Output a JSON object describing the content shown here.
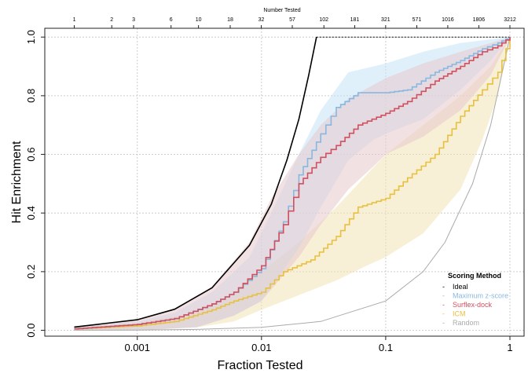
{
  "chart_data": {
    "type": "line",
    "xlabel": "Fraction Tested",
    "ylabel": "Hit Enrichment",
    "top_axis_title": "Number Tested",
    "xscale": "log",
    "xlim": [
      0.00018,
      1.3
    ],
    "ylim": [
      -0.02,
      1.03
    ],
    "x_ticks": [
      {
        "value": 0.001,
        "label": "0.001"
      },
      {
        "value": 0.01,
        "label": "0.01"
      },
      {
        "value": 0.1,
        "label": "0.1"
      },
      {
        "value": 1,
        "label": "1"
      }
    ],
    "y_ticks": [
      {
        "value": 0.0,
        "label": "0.0"
      },
      {
        "value": 0.2,
        "label": "0.2"
      },
      {
        "value": 0.4,
        "label": "0.4"
      },
      {
        "value": 0.6,
        "label": "0.6"
      },
      {
        "value": 0.8,
        "label": "0.8"
      },
      {
        "value": 1.0,
        "label": "1.0"
      }
    ],
    "top_ticks": [
      {
        "value": 0.000311,
        "label": "1"
      },
      {
        "value": 0.000623,
        "label": "2"
      },
      {
        "value": 0.000934,
        "label": "3"
      },
      {
        "value": 0.00187,
        "label": "6"
      },
      {
        "value": 0.00311,
        "label": "10"
      },
      {
        "value": 0.0056,
        "label": "18"
      },
      {
        "value": 0.00996,
        "label": "32"
      },
      {
        "value": 0.0177,
        "label": "57"
      },
      {
        "value": 0.0318,
        "label": "102"
      },
      {
        "value": 0.0563,
        "label": "181"
      },
      {
        "value": 0.0999,
        "label": "321"
      },
      {
        "value": 0.178,
        "label": "571"
      },
      {
        "value": 0.316,
        "label": "1016"
      },
      {
        "value": 0.562,
        "label": "1806"
      },
      {
        "value": 1.0,
        "label": "3212"
      }
    ],
    "legend": {
      "title": "Scoring Method",
      "position": "bottom-right",
      "entries": [
        "Ideal",
        "Maximum z-score",
        "Surflex-dock",
        "ICM",
        "Random"
      ]
    },
    "series": [
      {
        "name": "Ideal",
        "color": "#000000",
        "style": "solid",
        "points": [
          [
            0.000311,
            0.011
          ],
          [
            0.001,
            0.036
          ],
          [
            0.002,
            0.072
          ],
          [
            0.004,
            0.145
          ],
          [
            0.008,
            0.29
          ],
          [
            0.012,
            0.43
          ],
          [
            0.016,
            0.58
          ],
          [
            0.02,
            0.72
          ],
          [
            0.024,
            0.87
          ],
          [
            0.0277,
            1.0
          ]
        ]
      },
      {
        "name": "Ideal-plateau",
        "color": "#000000",
        "style": "dotted",
        "points": [
          [
            0.0277,
            1.0
          ],
          [
            1.0,
            1.0
          ]
        ]
      },
      {
        "name": "Random",
        "color": "#aaaaaa",
        "style": "solid",
        "points": [
          [
            0.000311,
            0.0003
          ],
          [
            0.001,
            0.001
          ],
          [
            0.003,
            0.003
          ],
          [
            0.01,
            0.01
          ],
          [
            0.03,
            0.03
          ],
          [
            0.1,
            0.1
          ],
          [
            0.2,
            0.2
          ],
          [
            0.3,
            0.3
          ],
          [
            0.5,
            0.5
          ],
          [
            0.7,
            0.7
          ],
          [
            1.0,
            1.0
          ]
        ]
      },
      {
        "name": "ICM",
        "color": "#e8c040",
        "style": "solid",
        "fill": "#f0e3b5",
        "points": [
          [
            0.000311,
            0.005
          ],
          [
            0.001,
            0.015
          ],
          [
            0.002,
            0.03
          ],
          [
            0.004,
            0.07
          ],
          [
            0.006,
            0.1
          ],
          [
            0.01,
            0.13
          ],
          [
            0.015,
            0.2
          ],
          [
            0.025,
            0.24
          ],
          [
            0.04,
            0.32
          ],
          [
            0.06,
            0.42
          ],
          [
            0.1,
            0.45
          ],
          [
            0.15,
            0.52
          ],
          [
            0.25,
            0.6
          ],
          [
            0.4,
            0.73
          ],
          [
            0.6,
            0.82
          ],
          [
            0.8,
            0.88
          ],
          [
            1.0,
            1.0
          ]
        ],
        "upper": [
          [
            0.000311,
            0.01
          ],
          [
            0.001,
            0.025
          ],
          [
            0.003,
            0.06
          ],
          [
            0.006,
            0.13
          ],
          [
            0.01,
            0.2
          ],
          [
            0.02,
            0.3
          ],
          [
            0.04,
            0.42
          ],
          [
            0.07,
            0.53
          ],
          [
            0.1,
            0.6
          ],
          [
            0.2,
            0.7
          ],
          [
            0.4,
            0.8
          ],
          [
            0.7,
            0.9
          ],
          [
            1.0,
            1.0
          ]
        ],
        "lower": [
          [
            0.000311,
            0.0
          ],
          [
            0.001,
            0.0
          ],
          [
            0.003,
            0.01
          ],
          [
            0.006,
            0.03
          ],
          [
            0.01,
            0.07
          ],
          [
            0.02,
            0.12
          ],
          [
            0.04,
            0.17
          ],
          [
            0.07,
            0.22
          ],
          [
            0.1,
            0.25
          ],
          [
            0.2,
            0.33
          ],
          [
            0.4,
            0.48
          ],
          [
            0.6,
            0.65
          ],
          [
            0.8,
            0.8
          ],
          [
            1.0,
            1.0
          ]
        ]
      },
      {
        "name": "Maximum z-score",
        "color": "#88b8e0",
        "style": "solid",
        "fill": "#c4e3f5",
        "points": [
          [
            0.000311,
            0.005
          ],
          [
            0.001,
            0.02
          ],
          [
            0.002,
            0.04
          ],
          [
            0.004,
            0.09
          ],
          [
            0.006,
            0.13
          ],
          [
            0.01,
            0.21
          ],
          [
            0.015,
            0.37
          ],
          [
            0.02,
            0.53
          ],
          [
            0.03,
            0.67
          ],
          [
            0.04,
            0.76
          ],
          [
            0.06,
            0.81
          ],
          [
            0.1,
            0.81
          ],
          [
            0.15,
            0.82
          ],
          [
            0.25,
            0.88
          ],
          [
            0.4,
            0.92
          ],
          [
            0.6,
            0.96
          ],
          [
            0.8,
            0.98
          ],
          [
            1.0,
            1.0
          ]
        ],
        "upper": [
          [
            0.000311,
            0.01
          ],
          [
            0.001,
            0.03
          ],
          [
            0.002,
            0.06
          ],
          [
            0.004,
            0.13
          ],
          [
            0.008,
            0.25
          ],
          [
            0.012,
            0.4
          ],
          [
            0.02,
            0.6
          ],
          [
            0.03,
            0.75
          ],
          [
            0.05,
            0.88
          ],
          [
            0.08,
            0.9
          ],
          [
            0.1,
            0.91
          ],
          [
            0.2,
            0.95
          ],
          [
            0.4,
            0.98
          ],
          [
            1.0,
            1.0
          ]
        ],
        "lower": [
          [
            0.000311,
            0.0
          ],
          [
            0.001,
            0.0
          ],
          [
            0.003,
            0.01
          ],
          [
            0.006,
            0.05
          ],
          [
            0.01,
            0.1
          ],
          [
            0.02,
            0.28
          ],
          [
            0.03,
            0.42
          ],
          [
            0.05,
            0.58
          ],
          [
            0.08,
            0.65
          ],
          [
            0.1,
            0.67
          ],
          [
            0.2,
            0.72
          ],
          [
            0.4,
            0.82
          ],
          [
            0.7,
            0.92
          ],
          [
            1.0,
            1.0
          ]
        ]
      },
      {
        "name": "Surflex-dock",
        "color": "#d05060",
        "style": "solid",
        "fill": "#e8c8cc",
        "points": [
          [
            0.000311,
            0.005
          ],
          [
            0.001,
            0.02
          ],
          [
            0.002,
            0.04
          ],
          [
            0.004,
            0.09
          ],
          [
            0.006,
            0.13
          ],
          [
            0.01,
            0.22
          ],
          [
            0.015,
            0.36
          ],
          [
            0.02,
            0.5
          ],
          [
            0.03,
            0.59
          ],
          [
            0.04,
            0.63
          ],
          [
            0.06,
            0.7
          ],
          [
            0.1,
            0.74
          ],
          [
            0.15,
            0.78
          ],
          [
            0.25,
            0.85
          ],
          [
            0.4,
            0.9
          ],
          [
            0.6,
            0.95
          ],
          [
            0.8,
            0.97
          ],
          [
            1.0,
            1.0
          ]
        ],
        "upper": [
          [
            0.000311,
            0.01
          ],
          [
            0.001,
            0.035
          ],
          [
            0.002,
            0.07
          ],
          [
            0.004,
            0.15
          ],
          [
            0.008,
            0.3
          ],
          [
            0.012,
            0.45
          ],
          [
            0.02,
            0.6
          ],
          [
            0.03,
            0.7
          ],
          [
            0.05,
            0.79
          ],
          [
            0.1,
            0.86
          ],
          [
            0.2,
            0.91
          ],
          [
            0.4,
            0.95
          ],
          [
            0.7,
            0.98
          ],
          [
            1.0,
            1.0
          ]
        ],
        "lower": [
          [
            0.000311,
            0.0
          ],
          [
            0.001,
            0.0
          ],
          [
            0.003,
            0.01
          ],
          [
            0.006,
            0.05
          ],
          [
            0.01,
            0.1
          ],
          [
            0.02,
            0.25
          ],
          [
            0.03,
            0.36
          ],
          [
            0.05,
            0.48
          ],
          [
            0.08,
            0.56
          ],
          [
            0.1,
            0.6
          ],
          [
            0.2,
            0.66
          ],
          [
            0.4,
            0.75
          ],
          [
            0.7,
            0.87
          ],
          [
            1.0,
            1.0
          ]
        ]
      }
    ]
  }
}
